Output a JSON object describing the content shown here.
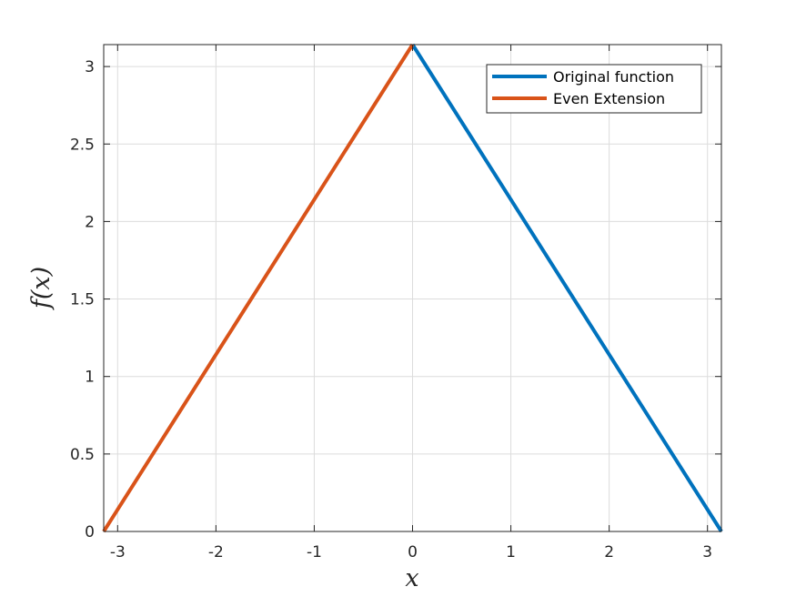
{
  "chart_data": {
    "type": "line",
    "xlabel": "x",
    "ylabel": "f(x)",
    "xlim": [
      -3.14159,
      3.14159
    ],
    "ylim": [
      0,
      3.14159
    ],
    "xticks": [
      -3,
      -2,
      -1,
      0,
      1,
      2,
      3
    ],
    "xtick_labels": [
      "-3",
      "-2",
      "-1",
      "0",
      "1",
      "2",
      "3"
    ],
    "yticks": [
      0,
      0.5,
      1,
      1.5,
      2,
      2.5,
      3
    ],
    "ytick_labels": [
      "0",
      "0.5",
      "1",
      "1.5",
      "2",
      "2.5",
      "3"
    ],
    "grid": true,
    "legend_position": "top-right",
    "series": [
      {
        "name": "Original function",
        "color": "#0072BD",
        "x": [
          0,
          3.14159
        ],
        "y": [
          3.14159,
          0
        ]
      },
      {
        "name": "Even Extension",
        "color": "#D95319",
        "x": [
          -3.14159,
          0
        ],
        "y": [
          0,
          3.14159
        ]
      }
    ]
  }
}
